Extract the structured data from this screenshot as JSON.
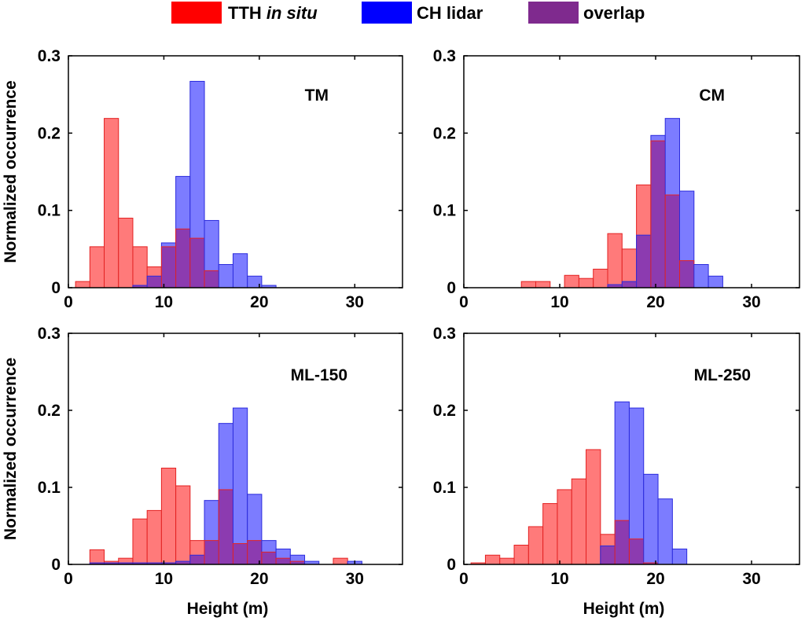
{
  "legend": {
    "items": [
      {
        "label": "TTH",
        "label_italic": "in situ",
        "color": "#ff0000"
      },
      {
        "label": "CH lidar",
        "color": "#0000ff"
      },
      {
        "label": "overlap",
        "color": "#7f2a8e"
      }
    ]
  },
  "colors": {
    "tth_fill": "#ff7a7a",
    "tth_edge": "#e32222",
    "ch_fill": "#7c7cff",
    "ch_edge": "#2b2bdc",
    "overlap_fill": "#8c3bb0",
    "axis": "#000000"
  },
  "chart_data": [
    {
      "type": "bar",
      "panel": "TM",
      "title": "TM",
      "xlabel": "",
      "ylabel": "Normalized occurrence",
      "xlim": [
        0,
        35
      ],
      "ylim": [
        0,
        0.3
      ],
      "xticks": [
        "0",
        "10",
        "20",
        "30"
      ],
      "yticks": [
        "0",
        "0.1",
        "0.2",
        "0.3"
      ],
      "bin_width": 1.5,
      "bin_start": 0.75,
      "series": [
        {
          "name": "TTH in situ",
          "values": [
            0.008,
            0.053,
            0.219,
            0.09,
            0.053,
            0.027,
            0.053,
            0.076,
            0.064,
            0.022,
            0,
            0,
            0,
            0,
            0
          ]
        },
        {
          "name": "CH lidar",
          "values": [
            0,
            0,
            0,
            0,
            0.003,
            0.015,
            0.058,
            0.144,
            0.267,
            0.087,
            0.03,
            0.044,
            0.015,
            0.003,
            0
          ]
        }
      ]
    },
    {
      "type": "bar",
      "panel": "CM",
      "title": "CM",
      "xlabel": "",
      "ylabel": "",
      "xlim": [
        0,
        35
      ],
      "ylim": [
        0,
        0.3
      ],
      "xticks": [
        "0",
        "10",
        "20",
        "30"
      ],
      "yticks": [
        "0",
        "0.1",
        "0.2",
        "0.3"
      ],
      "bin_width": 1.5,
      "bin_start": 6.0,
      "series": [
        {
          "name": "TTH in situ",
          "values": [
            0.008,
            0.008,
            0,
            0.016,
            0.012,
            0.024,
            0.07,
            0.05,
            0.133,
            0.19,
            0.12,
            0.035,
            0,
            0,
            0
          ]
        },
        {
          "name": "CH lidar",
          "values": [
            0,
            0,
            0,
            0,
            0,
            0,
            0.004,
            0.008,
            0.068,
            0.197,
            0.219,
            0.125,
            0.03,
            0.015,
            0
          ]
        }
      ]
    },
    {
      "type": "bar",
      "panel": "ML-150",
      "title": "ML-150",
      "xlabel": "Height (m)",
      "ylabel": "Normalized occurrence",
      "xlim": [
        0,
        35
      ],
      "ylim": [
        0,
        0.3
      ],
      "xticks": [
        "0",
        "10",
        "20",
        "30"
      ],
      "yticks": [
        "0",
        "0.1",
        "0.2",
        "0.3"
      ],
      "bin_width": 1.5,
      "bin_start": 2.25,
      "series": [
        {
          "name": "TTH in situ",
          "values": [
            0.019,
            0.004,
            0.008,
            0.059,
            0.07,
            0.125,
            0.102,
            0.031,
            0.031,
            0.097,
            0.027,
            0.031,
            0.016,
            0.008,
            0.004,
            0,
            0,
            0.008,
            0
          ]
        },
        {
          "name": "CH lidar",
          "values": [
            0.002,
            0.002,
            0.002,
            0.002,
            0.002,
            0.002,
            0.004,
            0.012,
            0.083,
            0.183,
            0.203,
            0.091,
            0.031,
            0.02,
            0.012,
            0.004,
            0,
            0,
            0.004
          ]
        }
      ]
    },
    {
      "type": "bar",
      "panel": "ML-250",
      "title": "ML-250",
      "xlabel": "Height (m)",
      "ylabel": "",
      "xlim": [
        0,
        35
      ],
      "ylim": [
        0,
        0.3
      ],
      "xticks": [
        "0",
        "10",
        "20",
        "30"
      ],
      "yticks": [
        "0",
        "0.1",
        "0.2",
        "0.3"
      ],
      "bin_width": 1.5,
      "bin_start": 0.75,
      "series": [
        {
          "name": "TTH in situ",
          "values": [
            0.002,
            0.012,
            0.008,
            0.025,
            0.049,
            0.079,
            0.097,
            0.111,
            0.149,
            0.039,
            0.057,
            0.033,
            0.002,
            0,
            0
          ]
        },
        {
          "name": "CH lidar",
          "values": [
            0,
            0,
            0,
            0,
            0,
            0,
            0,
            0,
            0,
            0.024,
            0.211,
            0.203,
            0.117,
            0.085,
            0.02
          ]
        }
      ]
    }
  ]
}
